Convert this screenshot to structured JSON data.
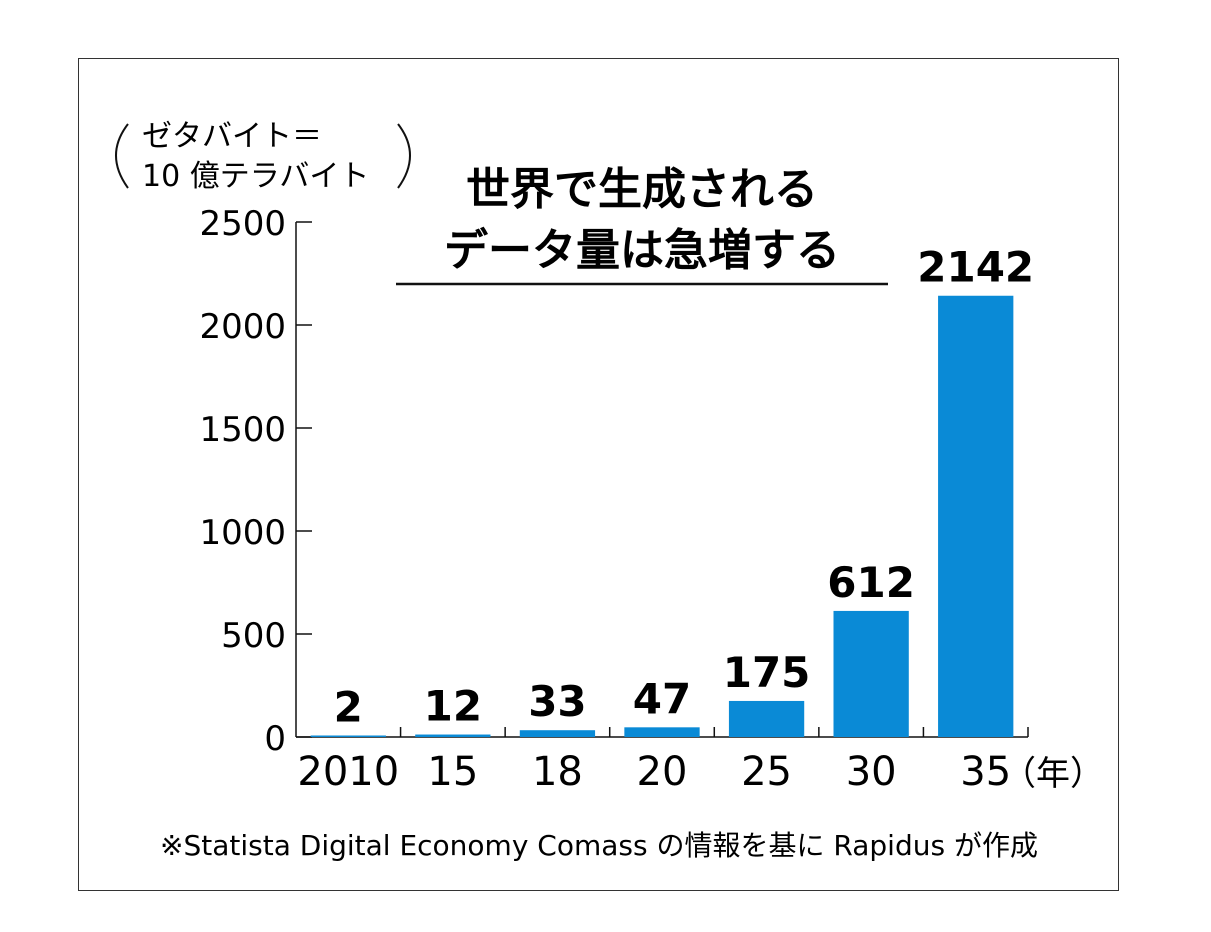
{
  "chart_data": {
    "type": "bar",
    "title_lines": [
      "世界で生成される",
      "データ量は急増する"
    ],
    "unit_label_lines": [
      "ゼタバイト＝",
      "10 億テラバイト"
    ],
    "categories": [
      "2010",
      "15",
      "18",
      "20",
      "25",
      "30",
      "35"
    ],
    "x_unit": "（年）",
    "values": [
      2,
      12,
      33,
      47,
      175,
      612,
      2142
    ],
    "value_labels": [
      "2",
      "12",
      "33",
      "47",
      "175",
      "612",
      "2142"
    ],
    "ylim": [
      0,
      2500
    ],
    "y_ticks": [
      0,
      500,
      1000,
      1500,
      2000,
      2500
    ],
    "y_tick_labels": [
      "0",
      "500",
      "1000",
      "1500",
      "2000",
      "2500"
    ],
    "grid": false,
    "bar_color": "#0A8AD6",
    "source_note": "※Statista Digital Economy Comass の情報を基に Rapidus が作成"
  }
}
